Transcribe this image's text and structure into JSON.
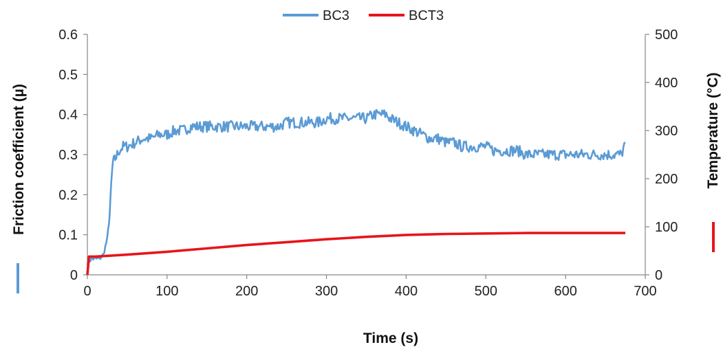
{
  "chart_data": {
    "type": "line",
    "title": "",
    "xlabel": "Time (s)",
    "ylabel": "Friction coefficient  (µ)",
    "y2label": "Temperature (°C)",
    "xlim": [
      0,
      700
    ],
    "ylim": [
      0,
      0.6
    ],
    "y2lim": [
      0,
      500
    ],
    "x_ticks": [
      "0",
      "100",
      "200",
      "300",
      "400",
      "500",
      "600",
      "700"
    ],
    "y_ticks": [
      "0",
      "0.1",
      "0.2",
      "0.3",
      "0.4",
      "0.5",
      "0.6"
    ],
    "y2_ticks": [
      "0",
      "100",
      "200",
      "300",
      "400",
      "500"
    ],
    "grid": false,
    "legend_position": "top",
    "series": [
      {
        "name": "BC3",
        "axis": "left",
        "color": "#5B9BD5",
        "x": [
          0,
          5,
          10,
          15,
          20,
          25,
          28,
          30,
          32,
          35,
          40,
          45,
          50,
          60,
          70,
          80,
          90,
          100,
          110,
          120,
          130,
          140,
          150,
          160,
          170,
          180,
          190,
          200,
          210,
          220,
          230,
          240,
          250,
          260,
          270,
          280,
          290,
          300,
          310,
          320,
          330,
          340,
          350,
          360,
          370,
          375,
          380,
          390,
          400,
          410,
          420,
          430,
          440,
          450,
          460,
          470,
          480,
          490,
          500,
          510,
          520,
          530,
          540,
          550,
          560,
          570,
          580,
          590,
          600,
          610,
          620,
          630,
          640,
          650,
          660,
          670,
          675
        ],
        "values": [
          0.03,
          0.04,
          0.04,
          0.04,
          0.05,
          0.09,
          0.15,
          0.23,
          0.28,
          0.29,
          0.31,
          0.32,
          0.32,
          0.33,
          0.34,
          0.34,
          0.35,
          0.35,
          0.36,
          0.36,
          0.37,
          0.37,
          0.37,
          0.37,
          0.37,
          0.37,
          0.37,
          0.37,
          0.37,
          0.37,
          0.37,
          0.37,
          0.38,
          0.38,
          0.38,
          0.38,
          0.38,
          0.39,
          0.39,
          0.39,
          0.39,
          0.39,
          0.39,
          0.4,
          0.4,
          0.4,
          0.39,
          0.38,
          0.37,
          0.36,
          0.35,
          0.34,
          0.34,
          0.33,
          0.33,
          0.32,
          0.32,
          0.32,
          0.32,
          0.31,
          0.31,
          0.31,
          0.31,
          0.3,
          0.3,
          0.3,
          0.3,
          0.3,
          0.3,
          0.3,
          0.3,
          0.3,
          0.3,
          0.3,
          0.3,
          0.3,
          0.33
        ]
      },
      {
        "name": "BCT3",
        "axis": "right",
        "color": "#E8141B",
        "x": [
          0,
          2,
          5,
          10,
          50,
          100,
          150,
          200,
          250,
          300,
          350,
          400,
          450,
          500,
          550,
          600,
          650,
          675
        ],
        "values": [
          0,
          38,
          38,
          38,
          42,
          48,
          55,
          62,
          68,
          74,
          79,
          83,
          85,
          86,
          87,
          87,
          87,
          87
        ]
      }
    ]
  }
}
